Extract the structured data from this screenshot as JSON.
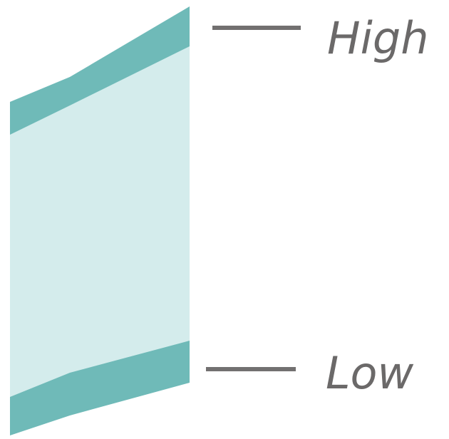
{
  "legend": {
    "high_label": "High",
    "low_label": "Low"
  },
  "colors": {
    "band_fill": "#d4ecec",
    "edge_fill": "#6fbab8",
    "tick": "#727070",
    "label_text": "#6b6969"
  }
}
